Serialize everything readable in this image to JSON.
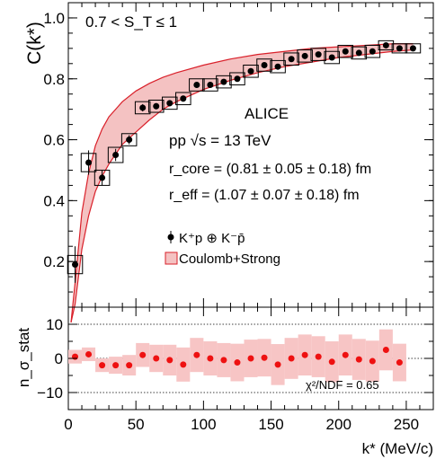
{
  "chart_data": [
    {
      "type": "scatter",
      "title": "",
      "xlabel": "",
      "ylabel": "C(k*)",
      "xlim": [
        0,
        270
      ],
      "ylim": [
        0.05,
        1.05
      ],
      "x_ticks": [
        0,
        50,
        100,
        150,
        200,
        250
      ],
      "y_ticks": [
        0.2,
        0.4,
        0.6,
        0.8,
        1.0
      ],
      "y_tick_labels": [
        "0.2",
        "0.4",
        "0.6",
        "0.8",
        "1.0"
      ],
      "selection_label": "0.7 < S_T ≤ 1",
      "annotations": {
        "experiment": "ALICE",
        "system": "pp √s = 13 TeV",
        "r_core": "r_core = (0.81 ± 0.05 ± 0.18) fm",
        "r_eff": "r_eff = (1.07 ± 0.07 ± 0.18) fm"
      },
      "legend_position": "lower-right",
      "series": [
        {
          "name": "K⁺p ⊕ K⁻p̄",
          "kind": "points",
          "color": "#000000",
          "x": [
            5,
            15,
            25,
            35,
            45,
            55,
            65,
            75,
            85,
            95,
            105,
            115,
            125,
            135,
            145,
            155,
            165,
            175,
            185,
            195,
            205,
            215,
            225,
            235,
            245,
            255
          ],
          "y": [
            0.19,
            0.525,
            0.475,
            0.55,
            0.6,
            0.705,
            0.71,
            0.72,
            0.735,
            0.78,
            0.78,
            0.79,
            0.8,
            0.825,
            0.845,
            0.84,
            0.865,
            0.875,
            0.88,
            0.87,
            0.89,
            0.885,
            0.89,
            0.91,
            0.9,
            0.9
          ],
          "stat_err": [
            0.06,
            0.04,
            0.025,
            0.02,
            0.015,
            0.012,
            0.01,
            0.01,
            0.01,
            0.01,
            0.008,
            0.008,
            0.008,
            0.008,
            0.008,
            0.008,
            0.008,
            0.008,
            0.008,
            0.008,
            0.008,
            0.008,
            0.008,
            0.008,
            0.008,
            0.008
          ],
          "sys_err": [
            0.03,
            0.03,
            0.025,
            0.025,
            0.02,
            0.02,
            0.02,
            0.02,
            0.02,
            0.02,
            0.02,
            0.02,
            0.02,
            0.02,
            0.02,
            0.02,
            0.02,
            0.02,
            0.02,
            0.02,
            0.02,
            0.02,
            0.02,
            0.015,
            0.015,
            0.015
          ]
        },
        {
          "name": "Coulomb+Strong",
          "kind": "band",
          "fill": "#f4c2c2",
          "stroke": "#d9202a",
          "x": [
            2,
            5,
            10,
            15,
            20,
            25,
            30,
            40,
            50,
            60,
            70,
            80,
            100,
            120,
            140,
            160,
            180,
            200,
            220,
            240,
            255
          ],
          "lower": [
            0.0,
            0.06,
            0.24,
            0.35,
            0.43,
            0.48,
            0.52,
            0.585,
            0.625,
            0.665,
            0.7,
            0.725,
            0.765,
            0.795,
            0.82,
            0.84,
            0.855,
            0.87,
            0.88,
            0.89,
            0.895
          ],
          "upper": [
            0.0,
            0.13,
            0.36,
            0.49,
            0.58,
            0.635,
            0.675,
            0.725,
            0.76,
            0.785,
            0.805,
            0.82,
            0.845,
            0.865,
            0.88,
            0.89,
            0.9,
            0.905,
            0.91,
            0.915,
            0.915
          ]
        }
      ]
    },
    {
      "type": "scatter",
      "title": "",
      "xlabel": "k* (MeV/c)",
      "ylabel": "n_σ_stat",
      "xlim": [
        0,
        270
      ],
      "ylim": [
        -15,
        15
      ],
      "x_ticks": [
        0,
        50,
        100,
        150,
        200,
        250
      ],
      "x_tick_labels": [
        "0",
        "50",
        "100",
        "150",
        "200",
        "250"
      ],
      "y_ticks": [
        10,
        0,
        -10
      ],
      "y_tick_labels": [
        "10",
        "0",
        "−10"
      ],
      "reference_lines": [
        10,
        0,
        -10
      ],
      "annotation": "χ²/NDF = 0.65",
      "series": [
        {
          "name": "",
          "kind": "points",
          "color": "#ee1111",
          "x": [
            5,
            15,
            25,
            35,
            45,
            55,
            65,
            75,
            85,
            95,
            105,
            115,
            125,
            135,
            145,
            155,
            165,
            175,
            185,
            195,
            205,
            215,
            225,
            235,
            245
          ],
          "y": [
            0.5,
            1.2,
            -2.0,
            -2.0,
            -2.0,
            1.0,
            0.0,
            -0.5,
            -1.8,
            1.0,
            0.0,
            -0.5,
            -1.2,
            0.0,
            0.2,
            -1.8,
            0.0,
            1.0,
            0.5,
            -1.0,
            1.0,
            -0.3,
            -0.8,
            2.5,
            -1.2
          ],
          "band_halfwidth": [
            2.0,
            2.0,
            2.0,
            2.5,
            3.0,
            3.5,
            4.0,
            4.5,
            5.0,
            5.0,
            5.0,
            5.0,
            5.5,
            5.5,
            5.5,
            6.0,
            6.0,
            6.0,
            6.0,
            6.0,
            6.0,
            6.0,
            6.0,
            6.0,
            5.5
          ]
        }
      ]
    }
  ]
}
